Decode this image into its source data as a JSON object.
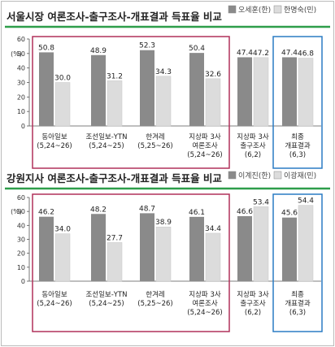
{
  "chart_data": [
    {
      "type": "bar",
      "title": "서울시장 여론조사-출구조사-개표결과 득표율 비교",
      "ylabel": "(%)",
      "ylim": [
        0,
        60
      ],
      "yticks": [
        "0",
        "10",
        "20",
        "30",
        "40",
        "50",
        "60"
      ],
      "categories": [
        {
          "lines": [
            "동아일보",
            "(5,24~26)"
          ]
        },
        {
          "lines": [
            "조선일보-YTN",
            "(5,24~25)"
          ]
        },
        {
          "lines": [
            "한겨레",
            "(5,25~26)"
          ]
        },
        {
          "lines": [
            "지상파 3사",
            "여론조사",
            "(5,24~26)"
          ]
        },
        {
          "lines": [
            "지상파 3사",
            "출구조사",
            "(6,2)"
          ]
        },
        {
          "lines": [
            "최종",
            "개표결과",
            "(6,3)"
          ]
        }
      ],
      "series": [
        {
          "name": "오세훈(한)",
          "values": [
            50.8,
            48.9,
            52.3,
            50.4,
            47.4,
            47.4
          ],
          "labels": [
            "50.8",
            "48.9",
            "52.3",
            "50.4",
            "47.4",
            "47.4"
          ],
          "color": "#8a8a8a"
        },
        {
          "name": "한명숙(민)",
          "values": [
            30.0,
            31.2,
            34.3,
            32.6,
            47.2,
            46.8
          ],
          "labels": [
            "30.0",
            "31.2",
            "34.3",
            "32.6",
            "47.2",
            "46.8"
          ],
          "color": "#dcdcdc"
        }
      ]
    },
    {
      "type": "bar",
      "title": "강원지사 여론조사-출구조사-개표결과 득표율 비교",
      "ylabel": "(%)",
      "ylim": [
        0,
        60
      ],
      "yticks": [
        "0",
        "10",
        "20",
        "30",
        "40",
        "50",
        "60"
      ],
      "categories": [
        {
          "lines": [
            "동아일보",
            "(5,24~26)"
          ]
        },
        {
          "lines": [
            "조선일보-YTN",
            "(5,24~25)"
          ]
        },
        {
          "lines": [
            "한겨레",
            "(5,25~26)"
          ]
        },
        {
          "lines": [
            "지상파 3사",
            "여론조사",
            "(5,24~26)"
          ]
        },
        {
          "lines": [
            "지상파 3사",
            "출구조사",
            "(6,2)"
          ]
        },
        {
          "lines": [
            "최종",
            "개표결과",
            "(6,3)"
          ]
        }
      ],
      "series": [
        {
          "name": "이계진(한)",
          "values": [
            46.2,
            48.2,
            48.7,
            46.1,
            46.6,
            45.6
          ],
          "labels": [
            "46.2",
            "48.2",
            "48.7",
            "46.1",
            "46.6",
            "45.6"
          ],
          "color": "#8a8a8a"
        },
        {
          "name": "이광재(민)",
          "values": [
            34.0,
            27.7,
            38.9,
            34.4,
            53.4,
            54.4
          ],
          "labels": [
            "34.0",
            "27.7",
            "38.9",
            "34.4",
            "53.4",
            "54.4"
          ],
          "color": "#dcdcdc"
        }
      ]
    }
  ],
  "colors": {
    "underline": "#2e9e4a",
    "poll_box": "#b0305a",
    "final_box": "#2a7bc4",
    "bar_dark": "#8a8a8a",
    "bar_light": "#dcdcdc"
  }
}
